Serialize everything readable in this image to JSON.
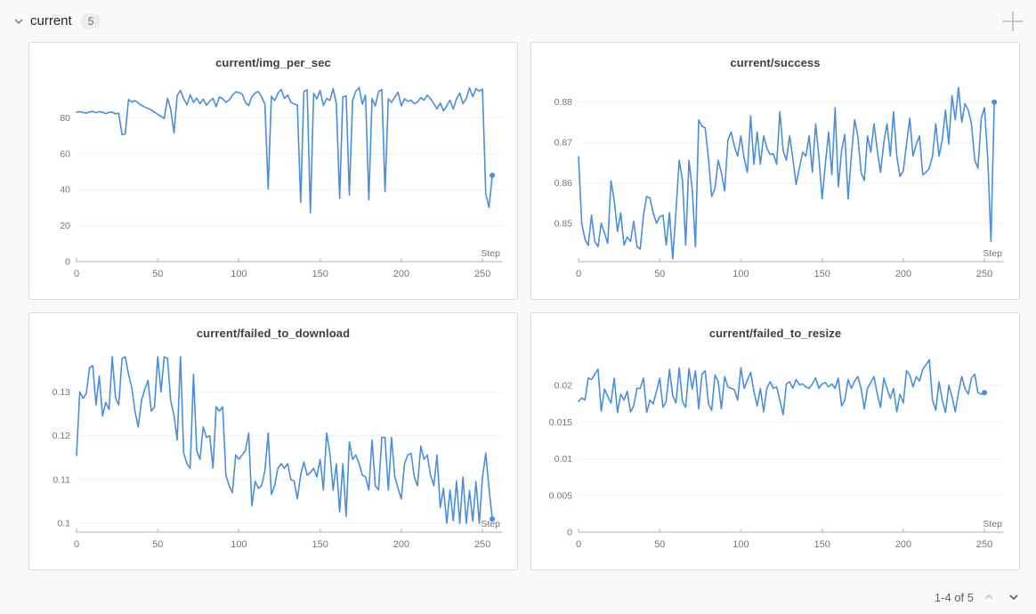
{
  "header": {
    "section_label": "current",
    "panel_count": "5"
  },
  "icons": {
    "collapse_chevron": "chevron-down",
    "add_panel": "plus",
    "page_up": "chevron-up",
    "page_down": "chevron-down"
  },
  "pagination": {
    "label": "1-4 of 5"
  },
  "colors": {
    "series_blue": "#4a8edc",
    "card_border": "#dcdcdc",
    "page_background": "#f9f9f9",
    "grid_line": "#eef0f2",
    "axis_gray": "#c9ccd0",
    "tick_text": "#72777d"
  },
  "chart_data": [
    {
      "type": "line",
      "title": "current/img_per_sec",
      "xlabel": "Step",
      "line_color": "#4a8edc",
      "end_dot": true,
      "xlim": [
        0,
        262
      ],
      "ylim": [
        0,
        100
      ],
      "yticks": [
        {
          "v": 0,
          "label": "0"
        },
        {
          "v": 20,
          "label": "20"
        },
        {
          "v": 40,
          "label": "40"
        },
        {
          "v": 60,
          "label": "60"
        },
        {
          "v": 80,
          "label": "80"
        }
      ],
      "xticks": [
        0,
        50,
        100,
        150,
        200,
        250
      ],
      "x_start": 0,
      "x_step": 2,
      "values": [
        83.2,
        83.4,
        83.0,
        82.6,
        83.3,
        83.5,
        82.9,
        83.4,
        83.1,
        82.4,
        83.0,
        83.2,
        82.2,
        82.6,
        70.6,
        71.0,
        90.2,
        88.8,
        89.6,
        88.2,
        87.0,
        86.0,
        85.2,
        84.4,
        83.0,
        82.0,
        80.8,
        79.6,
        90.8,
        84.8,
        71.6,
        92.4,
        95.2,
        90.6,
        87.2,
        92.8,
        88.6,
        91.0,
        87.8,
        90.4,
        87.0,
        89.2,
        90.8,
        86.2,
        91.6,
        90.6,
        88.6,
        89.8,
        92.6,
        94.4,
        94.0,
        93.2,
        88.6,
        86.8,
        91.8,
        93.8,
        94.6,
        91.6,
        87.6,
        40.4,
        92.0,
        89.6,
        93.6,
        95.8,
        90.8,
        92.6,
        88.8,
        87.6,
        87.2,
        33.0,
        94.6,
        95.6,
        27.2,
        93.6,
        90.6,
        95.2,
        86.8,
        90.8,
        89.6,
        96.2,
        87.8,
        35.2,
        91.6,
        92.2,
        37.0,
        89.8,
        94.8,
        96.8,
        87.6,
        92.6,
        34.4,
        90.8,
        86.6,
        94.6,
        95.8,
        39.0,
        90.6,
        88.6,
        91.6,
        94.2,
        86.6,
        90.6,
        89.2,
        89.8,
        87.8,
        88.8,
        91.2,
        89.8,
        92.6,
        90.6,
        87.8,
        85.0,
        88.2,
        83.8,
        86.8,
        89.8,
        84.8,
        90.6,
        93.8,
        87.8,
        90.8,
        96.6,
        91.8,
        96.2,
        94.8,
        96.0,
        37.6,
        30.2,
        48.0
      ]
    },
    {
      "type": "line",
      "title": "current/success",
      "xlabel": "Step",
      "line_color": "#4a8edc",
      "end_dot": true,
      "xlim": [
        0,
        262
      ],
      "ylim": [
        0.8405,
        0.885
      ],
      "yticks": [
        {
          "v": 0.85,
          "label": "0.85"
        },
        {
          "v": 0.86,
          "label": "0.86"
        },
        {
          "v": 0.87,
          "label": "0.87"
        },
        {
          "v": 0.88,
          "label": "0.88"
        }
      ],
      "xticks": [
        0,
        50,
        100,
        150,
        200,
        250
      ],
      "x_start": 0,
      "x_step": 2,
      "values": [
        0.8665,
        0.85,
        0.846,
        0.8445,
        0.852,
        0.8455,
        0.8442,
        0.85,
        0.8476,
        0.845,
        0.8605,
        0.8556,
        0.848,
        0.8526,
        0.8446,
        0.8466,
        0.8455,
        0.8505,
        0.8442,
        0.8436,
        0.852,
        0.8566,
        0.8562,
        0.8526,
        0.85,
        0.8516,
        0.852,
        0.8446,
        0.8526,
        0.8412,
        0.853,
        0.8656,
        0.8606,
        0.8446,
        0.8656,
        0.8586,
        0.8442,
        0.8756,
        0.874,
        0.8736,
        0.866,
        0.8566,
        0.8586,
        0.8656,
        0.8626,
        0.858,
        0.8706,
        0.8726,
        0.869,
        0.8666,
        0.8716,
        0.866,
        0.8626,
        0.8766,
        0.8646,
        0.8726,
        0.8646,
        0.8716,
        0.8686,
        0.867,
        0.8672,
        0.8646,
        0.8776,
        0.868,
        0.8656,
        0.8716,
        0.866,
        0.8596,
        0.8636,
        0.8676,
        0.8666,
        0.8716,
        0.8626,
        0.8746,
        0.8666,
        0.856,
        0.8646,
        0.8726,
        0.862,
        0.8786,
        0.859,
        0.868,
        0.872,
        0.856,
        0.8666,
        0.8756,
        0.8716,
        0.8626,
        0.8606,
        0.8716,
        0.8676,
        0.8746,
        0.868,
        0.8626,
        0.87,
        0.8746,
        0.8666,
        0.8776,
        0.8666,
        0.8616,
        0.863,
        0.8696,
        0.876,
        0.8666,
        0.8696,
        0.8716,
        0.862,
        0.8626,
        0.8636,
        0.8666,
        0.8746,
        0.8666,
        0.8706,
        0.878,
        0.8696,
        0.8816,
        0.8756,
        0.8836,
        0.875,
        0.8796,
        0.878,
        0.8746,
        0.8656,
        0.8636,
        0.876,
        0.8786,
        0.866,
        0.8455,
        0.88
      ]
    },
    {
      "type": "line",
      "title": "current/failed_to_download",
      "xlabel": "Step",
      "line_color": "#4a8edc",
      "end_dot": true,
      "xlim": [
        0,
        262
      ],
      "ylim": [
        0.098,
        0.139
      ],
      "yticks": [
        {
          "v": 0.1,
          "label": "0.1"
        },
        {
          "v": 0.11,
          "label": "0.11"
        },
        {
          "v": 0.12,
          "label": "0.12"
        },
        {
          "v": 0.13,
          "label": "0.13"
        }
      ],
      "xticks": [
        0,
        50,
        100,
        150,
        200,
        250
      ],
      "x_start": 0,
      "x_step": 2,
      "values": [
        0.1155,
        0.13,
        0.1285,
        0.1296,
        0.1355,
        0.136,
        0.127,
        0.1336,
        0.1245,
        0.1276,
        0.126,
        0.138,
        0.1286,
        0.127,
        0.1376,
        0.138,
        0.134,
        0.131,
        0.1256,
        0.122,
        0.128,
        0.1306,
        0.1326,
        0.1256,
        0.1266,
        0.138,
        0.13,
        0.138,
        0.1376,
        0.128,
        0.1246,
        0.119,
        0.138,
        0.116,
        0.1136,
        0.1126,
        0.134,
        0.1166,
        0.1146,
        0.122,
        0.1196,
        0.12,
        0.1126,
        0.1266,
        0.1256,
        0.1266,
        0.111,
        0.1086,
        0.107,
        0.1156,
        0.1146,
        0.1156,
        0.1166,
        0.1206,
        0.104,
        0.1096,
        0.108,
        0.1086,
        0.112,
        0.1206,
        0.1066,
        0.1086,
        0.1126,
        0.1136,
        0.1126,
        0.1136,
        0.11,
        0.1096,
        0.1056,
        0.111,
        0.114,
        0.111,
        0.1116,
        0.1126,
        0.1106,
        0.1146,
        0.1076,
        0.1206,
        0.116,
        0.1076,
        0.1136,
        0.1026,
        0.1136,
        0.1016,
        0.1186,
        0.1146,
        0.1156,
        0.1136,
        0.111,
        0.1106,
        0.1076,
        0.119,
        0.1086,
        0.1076,
        0.1196,
        0.1196,
        0.1076,
        0.1196,
        0.1106,
        0.108,
        0.1056,
        0.1136,
        0.1156,
        0.116,
        0.1106,
        0.1086,
        0.1176,
        0.1146,
        0.1156,
        0.111,
        0.1086,
        0.1156,
        0.1036,
        0.108,
        0.1,
        0.1076,
        0.1006,
        0.1096,
        0.1,
        0.1106,
        0.1,
        0.1075,
        0.1005,
        0.1095,
        0.1,
        0.1105,
        0.116,
        0.108,
        0.101
      ]
    },
    {
      "type": "line",
      "title": "current/failed_to_resize",
      "xlabel": "Step",
      "line_color": "#4a8edc",
      "end_dot": true,
      "xlim": [
        0,
        262
      ],
      "ylim": [
        0,
        0.0245
      ],
      "yticks": [
        {
          "v": 0,
          "label": "0"
        },
        {
          "v": 0.005,
          "label": "0.005"
        },
        {
          "v": 0.01,
          "label": "0.01"
        },
        {
          "v": 0.015,
          "label": "0.015"
        },
        {
          "v": 0.02,
          "label": "0.02"
        }
      ],
      "xticks": [
        0,
        50,
        100,
        150,
        200,
        250
      ],
      "x_start": 0,
      "x_step": 2,
      "values": [
        0.0178,
        0.0183,
        0.018,
        0.021,
        0.0208,
        0.0215,
        0.0222,
        0.0165,
        0.0195,
        0.0185,
        0.0176,
        0.021,
        0.0163,
        0.0188,
        0.018,
        0.0192,
        0.0164,
        0.0172,
        0.0196,
        0.0196,
        0.021,
        0.0163,
        0.018,
        0.0175,
        0.0192,
        0.021,
        0.017,
        0.0178,
        0.0222,
        0.0186,
        0.0176,
        0.0224,
        0.0178,
        0.017,
        0.0223,
        0.0195,
        0.022,
        0.0168,
        0.0215,
        0.022,
        0.0175,
        0.0166,
        0.0214,
        0.0206,
        0.0168,
        0.0212,
        0.0198,
        0.0196,
        0.0194,
        0.018,
        0.0224,
        0.0196,
        0.0207,
        0.0218,
        0.0192,
        0.0172,
        0.0196,
        0.0164,
        0.0196,
        0.0205,
        0.0196,
        0.0198,
        0.018,
        0.016,
        0.0202,
        0.0205,
        0.0196,
        0.0208,
        0.0201,
        0.0202,
        0.0198,
        0.0196,
        0.0202,
        0.021,
        0.0196,
        0.0202,
        0.0204,
        0.0198,
        0.0202,
        0.0196,
        0.021,
        0.0172,
        0.018,
        0.0208,
        0.0196,
        0.0206,
        0.0212,
        0.0196,
        0.0168,
        0.0196,
        0.0204,
        0.0212,
        0.0188,
        0.017,
        0.021,
        0.0196,
        0.0182,
        0.0196,
        0.0164,
        0.0188,
        0.0176,
        0.022,
        0.0214,
        0.0198,
        0.0212,
        0.0206,
        0.0222,
        0.0228,
        0.0235,
        0.018,
        0.0166,
        0.0205,
        0.018,
        0.0163,
        0.02,
        0.0185,
        0.0164,
        0.019,
        0.0212,
        0.0196,
        0.0188,
        0.021,
        0.0215,
        0.019,
        0.0188,
        0.019
      ]
    }
  ]
}
